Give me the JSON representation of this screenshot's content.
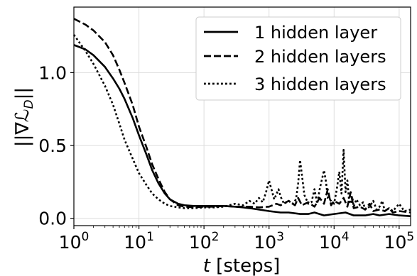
{
  "chart_data": {
    "type": "line",
    "title": "",
    "xlabel": "t [steps]",
    "xlabel_italic_part": "t",
    "xlabel_rest": " [steps]",
    "ylabel": "||∇L_D||",
    "ylabel_parts": {
      "bars_left": "||∇",
      "script_L": "ℒ",
      "subscript": "D",
      "bars_right": "||"
    },
    "xscale": "log",
    "xlim": [
      1,
      150000
    ],
    "ylim": [
      -0.05,
      1.45
    ],
    "yticks": [
      0.0,
      0.5,
      1.0
    ],
    "ytick_labels": [
      "0.0",
      "0.5",
      "1.0"
    ],
    "xticks": [
      1,
      10,
      100,
      1000,
      10000,
      100000
    ],
    "xtick_labels": [
      {
        "base": "10",
        "exp": "0"
      },
      {
        "base": "10",
        "exp": "1"
      },
      {
        "base": "10",
        "exp": "2"
      },
      {
        "base": "10",
        "exp": "3"
      },
      {
        "base": "10",
        "exp": "4"
      },
      {
        "base": "10",
        "exp": "5"
      }
    ],
    "grid": true,
    "legend_position": "top-right",
    "series": [
      {
        "name": "1 hidden layer",
        "style": "solid",
        "color": "#000000",
        "x": [
          1,
          1.5,
          2,
          3,
          4,
          5,
          6,
          8,
          10,
          13,
          16,
          20,
          25,
          30,
          40,
          50,
          70,
          100,
          150,
          200,
          300,
          400,
          500,
          700,
          1000,
          1500,
          2000,
          3000,
          4000,
          5000,
          7000,
          10000,
          15000,
          20000,
          30000,
          40000,
          50000,
          70000,
          100000,
          150000
        ],
        "y": [
          1.19,
          1.16,
          1.12,
          1.04,
          0.96,
          0.89,
          0.82,
          0.69,
          0.57,
          0.44,
          0.33,
          0.24,
          0.17,
          0.13,
          0.1,
          0.09,
          0.085,
          0.085,
          0.085,
          0.085,
          0.08,
          0.075,
          0.07,
          0.06,
          0.05,
          0.04,
          0.04,
          0.03,
          0.03,
          0.04,
          0.02,
          0.03,
          0.04,
          0.02,
          0.02,
          0.03,
          0.02,
          0.03,
          0.02,
          0.015
        ]
      },
      {
        "name": "2 hidden layers",
        "style": "dashed",
        "color": "#000000",
        "x": [
          1,
          1.5,
          2,
          3,
          4,
          5,
          6,
          8,
          10,
          13,
          16,
          20,
          25,
          30,
          40,
          50,
          70,
          100,
          150,
          200,
          300,
          400,
          500,
          700,
          1000,
          1300,
          1500,
          2000,
          2500,
          2800,
          3200,
          4000,
          5000,
          6000,
          7000,
          8000,
          9000,
          10000,
          12000,
          14000,
          16000,
          18000,
          20000,
          25000,
          30000,
          35000,
          40000,
          50000,
          60000,
          70000,
          80000,
          100000,
          150000
        ],
        "y": [
          1.37,
          1.33,
          1.29,
          1.21,
          1.12,
          1.02,
          0.93,
          0.78,
          0.63,
          0.49,
          0.37,
          0.27,
          0.18,
          0.13,
          0.09,
          0.08,
          0.075,
          0.08,
          0.08,
          0.085,
          0.08,
          0.08,
          0.08,
          0.075,
          0.08,
          0.1,
          0.09,
          0.12,
          0.09,
          0.14,
          0.09,
          0.11,
          0.08,
          0.14,
          0.1,
          0.2,
          0.09,
          0.12,
          0.1,
          0.14,
          0.08,
          0.18,
          0.07,
          0.08,
          0.06,
          0.1,
          0.05,
          0.06,
          0.05,
          0.07,
          0.04,
          0.05,
          0.04
        ]
      },
      {
        "name": "3 hidden layers",
        "style": "dotted",
        "color": "#000000",
        "x": [
          1,
          1.5,
          2,
          3,
          4,
          5,
          6,
          8,
          10,
          13,
          16,
          20,
          25,
          30,
          40,
          50,
          70,
          100,
          150,
          200,
          300,
          400,
          500,
          600,
          700,
          800,
          900,
          1000,
          1200,
          1400,
          1500,
          1700,
          2000,
          2300,
          2600,
          2800,
          3000,
          3500,
          4000,
          4500,
          5000,
          5500,
          6000,
          7000,
          7500,
          8000,
          9000,
          10000,
          11000,
          12000,
          13000,
          14000,
          15000,
          16000,
          17000,
          18000,
          19000,
          20000,
          22000,
          25000,
          28000,
          30000,
          35000,
          40000,
          45000,
          50000,
          55000,
          60000,
          70000,
          80000,
          100000,
          120000,
          150000
        ],
        "y": [
          1.26,
          1.15,
          1.06,
          0.91,
          0.78,
          0.65,
          0.54,
          0.41,
          0.31,
          0.23,
          0.17,
          0.13,
          0.1,
          0.085,
          0.075,
          0.07,
          0.07,
          0.075,
          0.075,
          0.08,
          0.1,
          0.09,
          0.12,
          0.1,
          0.14,
          0.11,
          0.18,
          0.26,
          0.13,
          0.2,
          0.15,
          0.1,
          0.12,
          0.1,
          0.13,
          0.24,
          0.4,
          0.16,
          0.1,
          0.11,
          0.2,
          0.1,
          0.2,
          0.33,
          0.25,
          0.14,
          0.12,
          0.1,
          0.2,
          0.32,
          0.17,
          0.47,
          0.18,
          0.26,
          0.12,
          0.1,
          0.15,
          0.08,
          0.13,
          0.09,
          0.11,
          0.06,
          0.08,
          0.12,
          0.06,
          0.08,
          0.12,
          0.05,
          0.07,
          0.05,
          0.1,
          0.05,
          0.06
        ]
      }
    ]
  }
}
